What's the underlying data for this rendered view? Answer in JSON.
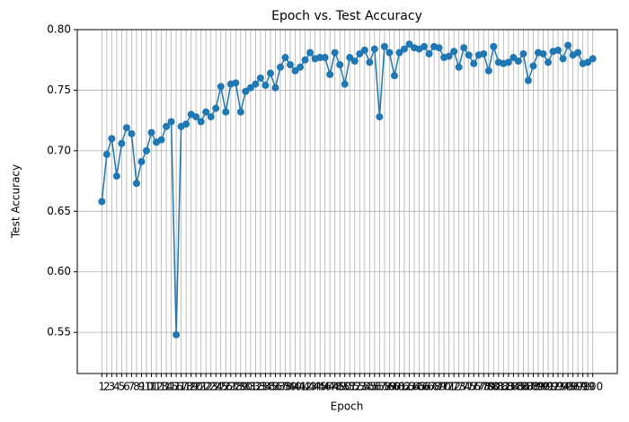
{
  "chart_data": {
    "type": "line",
    "title": "Epoch vs. Test Accuracy",
    "xlabel": "Epoch",
    "ylabel": "Test Accuracy",
    "x": [
      1,
      2,
      3,
      4,
      5,
      6,
      7,
      8,
      9,
      10,
      11,
      12,
      13,
      14,
      15,
      16,
      17,
      18,
      19,
      20,
      21,
      22,
      23,
      24,
      25,
      26,
      27,
      28,
      29,
      30,
      31,
      32,
      33,
      34,
      35,
      36,
      37,
      38,
      39,
      40,
      41,
      42,
      43,
      44,
      45,
      46,
      47,
      48,
      49,
      50,
      51,
      52,
      53,
      54,
      55,
      56,
      57,
      58,
      59,
      60,
      61,
      62,
      63,
      64,
      65,
      66,
      67,
      68,
      69,
      70,
      71,
      72,
      73,
      74,
      75,
      76,
      77,
      78,
      79,
      80,
      81,
      82,
      83,
      84,
      85,
      86,
      87,
      88,
      89,
      90,
      91,
      92,
      93,
      94,
      95,
      96,
      97,
      98,
      99,
      100
    ],
    "series": [
      {
        "name": "Test Accuracy",
        "color": "#1f77b4",
        "values": [
          0.658,
          0.697,
          0.71,
          0.679,
          0.706,
          0.719,
          0.714,
          0.673,
          0.691,
          0.7,
          0.715,
          0.707,
          0.709,
          0.72,
          0.724,
          0.548,
          0.72,
          0.722,
          0.73,
          0.728,
          0.724,
          0.732,
          0.728,
          0.735,
          0.753,
          0.732,
          0.755,
          0.756,
          0.732,
          0.749,
          0.752,
          0.755,
          0.76,
          0.754,
          0.764,
          0.752,
          0.769,
          0.777,
          0.771,
          0.766,
          0.769,
          0.775,
          0.781,
          0.776,
          0.777,
          0.777,
          0.763,
          0.781,
          0.771,
          0.755,
          0.777,
          0.774,
          0.78,
          0.783,
          0.773,
          0.784,
          0.728,
          0.786,
          0.781,
          0.762,
          0.781,
          0.784,
          0.788,
          0.785,
          0.784,
          0.786,
          0.78,
          0.786,
          0.785,
          0.777,
          0.778,
          0.782,
          0.769,
          0.785,
          0.779,
          0.772,
          0.779,
          0.78,
          0.766,
          0.786,
          0.773,
          0.772,
          0.773,
          0.777,
          0.774,
          0.78,
          0.758,
          0.77,
          0.781,
          0.78,
          0.773,
          0.782,
          0.783,
          0.776,
          0.787,
          0.779,
          0.781,
          0.772,
          0.773,
          0.776
        ]
      }
    ],
    "xlim": [
      -3.95,
      104.95
    ],
    "xticks": [
      1,
      2,
      3,
      4,
      5,
      6,
      7,
      8,
      9,
      10,
      11,
      12,
      13,
      14,
      15,
      16,
      17,
      18,
      19,
      20,
      21,
      22,
      23,
      24,
      25,
      26,
      27,
      28,
      29,
      30,
      31,
      32,
      33,
      34,
      35,
      36,
      37,
      38,
      39,
      40,
      41,
      42,
      43,
      44,
      45,
      46,
      47,
      48,
      49,
      50,
      51,
      52,
      53,
      54,
      55,
      56,
      57,
      58,
      59,
      60,
      61,
      62,
      63,
      64,
      65,
      66,
      67,
      68,
      69,
      70,
      71,
      72,
      73,
      74,
      75,
      76,
      77,
      78,
      79,
      80,
      81,
      82,
      83,
      84,
      85,
      86,
      87,
      88,
      89,
      90,
      91,
      92,
      93,
      94,
      95,
      96,
      97,
      98,
      99,
      100
    ],
    "ylim": [
      0.516,
      0.8
    ],
    "yticks": [
      0.55,
      {
        "value": 0.6,
        "label": "0.60"
      },
      0.65,
      {
        "value": 0.7,
        "label": "0.70"
      },
      0.75,
      {
        "value": 0.8,
        "label": "0.80"
      }
    ],
    "grid": true
  }
}
